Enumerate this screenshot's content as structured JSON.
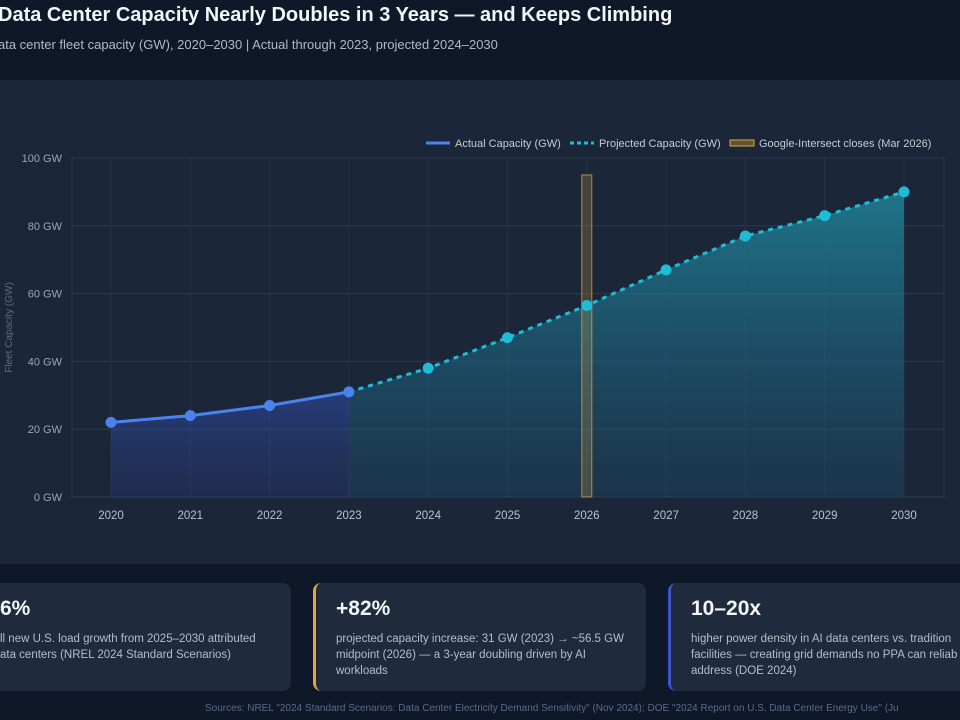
{
  "header": {
    "title": "Data Center Capacity Nearly Doubles in 3 Years — and Keeps Climbing",
    "subtitle": "ata center fleet capacity (GW), 2020–2030 | Actual through 2023, projected 2024–2030"
  },
  "chart_data": {
    "type": "line",
    "x": [
      "2020",
      "2021",
      "2022",
      "2023",
      "2024",
      "2025",
      "2026",
      "2027",
      "2028",
      "2029",
      "2030"
    ],
    "series": [
      {
        "name": "Actual Capacity (GW)",
        "x": [
          "2020",
          "2021",
          "2022",
          "2023"
        ],
        "values": [
          22,
          24,
          27,
          31
        ],
        "color": "#4a82f0",
        "style": "solid"
      },
      {
        "name": "Projected Capacity (GW)",
        "x": [
          "2023",
          "2024",
          "2025",
          "2026",
          "2027",
          "2028",
          "2029",
          "2030"
        ],
        "values": [
          31,
          38,
          47,
          56.5,
          67,
          77,
          83,
          90
        ],
        "color": "#1fbcd6",
        "style": "dashed"
      }
    ],
    "annotation": {
      "name": "Google-Intersect closes (Mar 2026)",
      "x": "2026",
      "top": 95,
      "color": "#e3a53b"
    },
    "ylabel": "Fleet Capacity (GW)",
    "ylim": [
      0,
      100
    ],
    "yticks": [
      0,
      20,
      40,
      60,
      80,
      100
    ],
    "ytick_labels": [
      "0 GW",
      "20 GW",
      "40 GW",
      "60 GW",
      "80 GW",
      "100 GW"
    ],
    "grid": true,
    "legend": "top-right"
  },
  "cards": [
    {
      "value": "6%",
      "desc": "ll new U.S. load growth from 2025–2030 attributed ata centers (NREL 2024 Standard Scenarios)"
    },
    {
      "value": "+82%",
      "desc": "projected capacity increase: 31 GW (2023) → ~56.5 GW midpoint (2026) — a 3-year doubling driven by AI workloads"
    },
    {
      "value": "10–20x",
      "desc": "higher power density in AI data centers vs. tradition facilities — creating grid demands no PPA can reliab address (DOE 2024)"
    }
  ],
  "footer": {
    "sources": "Sources: NREL \"2024 Standard Scenarios: Data Center Electricity Demand Sensitivity\" (Nov 2024); DOE \"2024 Report on U.S. Data Center Energy Use\" (Ju"
  }
}
